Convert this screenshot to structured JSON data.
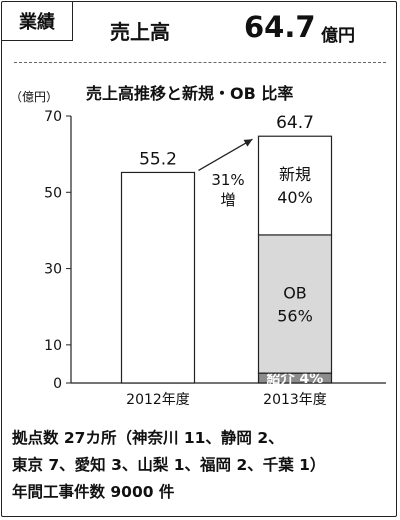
{
  "header": {
    "tag": "業績",
    "label": "売上高",
    "value": "64.7",
    "unit": "億円"
  },
  "chart_data": {
    "type": "bar",
    "title": "売上高推移と新規・OB 比率",
    "ylabel": "（億円）",
    "ylim": [
      0,
      70
    ],
    "yticks": [
      0,
      10,
      30,
      50,
      70
    ],
    "categories": [
      "2012年度",
      "2013年度"
    ],
    "bars": [
      {
        "category": "2012年度",
        "total": 55.2,
        "total_label": "55.2"
      },
      {
        "category": "2013年度",
        "total": 64.7,
        "total_label": "64.7",
        "segments": [
          {
            "name": "紹介",
            "share": 0.04,
            "label": "紹介 4%",
            "color": "#8c8c8c"
          },
          {
            "name": "OB",
            "share": 0.56,
            "label": "OB\n56%",
            "color": "#d9d9d9"
          },
          {
            "name": "新規",
            "share": 0.4,
            "label": "新規\n40%",
            "color": "#ffffff"
          }
        ]
      }
    ],
    "growth_annotation": {
      "value": "31%",
      "word": "増"
    }
  },
  "footer": {
    "lines": [
      "拠点数  27カ所（神奈川 11、静岡  2、",
      "東京 7、愛知 3、山梨 1、福岡 2、千葉 1）",
      "年間工事件数 9000 件"
    ]
  }
}
